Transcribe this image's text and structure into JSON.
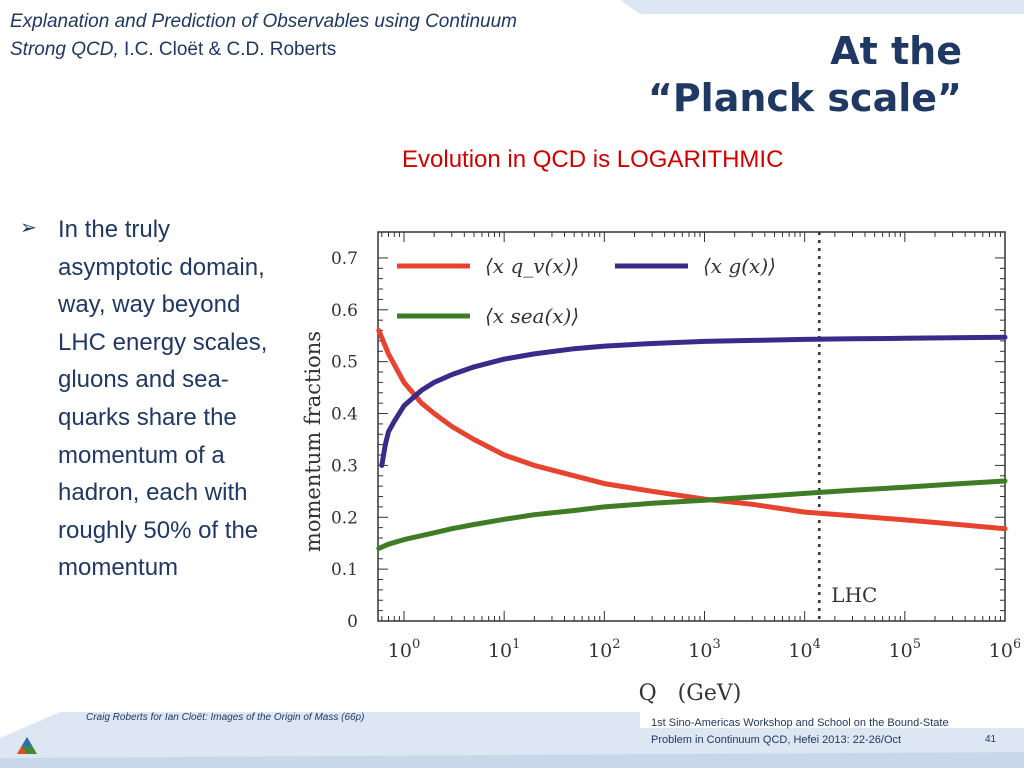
{
  "header": {
    "citation_italic": "Explanation and Prediction of Observables using Continuum Strong QCD,",
    "citation_authors": " I.C. Cloët & C.D. Roberts",
    "title_line1": "At the",
    "title_line2": "“Planck scale”",
    "subtitle": "Evolution in QCD is LOGARITHMIC"
  },
  "bullet": {
    "icon": "arrow-bullet-icon",
    "text": "In the truly asymptotic domain, way, way beyond LHC energy scales, gluons  and sea-quarks share the momentum of a hadron, each with  roughly 50% of the momentum"
  },
  "footer": {
    "left": "Craig Roberts for Ian Cloët: Images of the Origin of Mass (66p)",
    "right_line1": "1st Sino-Americas Workshop and School on the Bound-State",
    "right_line2": "Problem in Continuum QCD, Hefei 2013: 22-26/Oct",
    "page_number": "41",
    "logo_icon": "argonne-logo-icon"
  },
  "colors": {
    "title": "#1f3864",
    "subtitle": "#d00000",
    "series_valence": "#e8432e",
    "series_gluon": "#3b2a8a",
    "series_sea": "#3e7d26",
    "band": "#dde7f3"
  },
  "chart_data": {
    "type": "line",
    "xscale": "log",
    "xlabel": "Q   (GeV)",
    "ylabel": "momentum fractions",
    "xlim": [
      0.55,
      1000000
    ],
    "ylim": [
      0,
      0.75
    ],
    "yticks": [
      "0",
      "0.1",
      "0.2",
      "0.3",
      "0.4",
      "0.5",
      "0.6",
      "0.7"
    ],
    "xticks": [
      {
        "base": "10",
        "exp": "0"
      },
      {
        "base": "10",
        "exp": "1"
      },
      {
        "base": "10",
        "exp": "2"
      },
      {
        "base": "10",
        "exp": "3"
      },
      {
        "base": "10",
        "exp": "4"
      },
      {
        "base": "10",
        "exp": "5"
      },
      {
        "base": "10",
        "exp": "6"
      }
    ],
    "annotation": "LHC",
    "annotation_x": 14000,
    "series": [
      {
        "name": "⟨x q_v(x)⟩",
        "color": "#e8432e",
        "x": [
          0.56,
          0.7,
          1,
          1.5,
          2,
          3,
          5,
          10,
          20,
          50,
          100,
          300,
          1000,
          3000,
          10000,
          30000,
          100000,
          300000,
          1000000
        ],
        "y": [
          0.56,
          0.515,
          0.46,
          0.42,
          0.4,
          0.375,
          0.35,
          0.32,
          0.3,
          0.28,
          0.265,
          0.25,
          0.235,
          0.225,
          0.21,
          0.203,
          0.195,
          0.187,
          0.178
        ]
      },
      {
        "name": "⟨x g(x)⟩",
        "color": "#3b2a8a",
        "x": [
          0.6,
          0.65,
          0.7,
          0.8,
          1,
          1.5,
          2,
          3,
          5,
          10,
          20,
          50,
          100,
          300,
          1000,
          3000,
          10000,
          30000,
          100000,
          300000,
          1000000
        ],
        "y": [
          0.3,
          0.34,
          0.365,
          0.385,
          0.415,
          0.445,
          0.46,
          0.475,
          0.49,
          0.505,
          0.515,
          0.525,
          0.53,
          0.535,
          0.539,
          0.541,
          0.543,
          0.544,
          0.545,
          0.546,
          0.547
        ]
      },
      {
        "name": "⟨x sea(x)⟩",
        "color": "#3e7d26",
        "x": [
          0.56,
          0.7,
          1,
          2,
          3,
          5,
          10,
          20,
          50,
          100,
          300,
          1000,
          3000,
          10000,
          30000,
          100000,
          300000,
          1000000
        ],
        "y": [
          0.14,
          0.148,
          0.157,
          0.17,
          0.178,
          0.186,
          0.196,
          0.205,
          0.213,
          0.22,
          0.227,
          0.233,
          0.239,
          0.246,
          0.252,
          0.258,
          0.264,
          0.27
        ]
      }
    ],
    "legend_placement": "top-left, two rows"
  }
}
